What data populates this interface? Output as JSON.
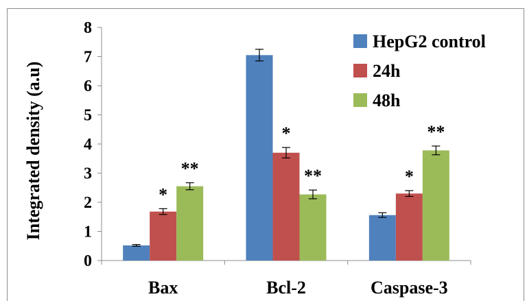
{
  "chart_data": {
    "type": "bar",
    "title": "",
    "xlabel": "",
    "ylabel": "Integrated density (a.u)",
    "ylim": [
      0,
      8
    ],
    "yticks": [
      "0",
      "1",
      "2",
      "3",
      "4",
      "5",
      "6",
      "7",
      "8"
    ],
    "categories": [
      "Bax",
      "Bcl-2",
      "Caspase-3"
    ],
    "series": [
      {
        "name": "HepG2 control",
        "color": "#4f81bd",
        "values": [
          0.52,
          7.05,
          1.56
        ],
        "errors": [
          0.03,
          0.2,
          0.08
        ],
        "labels": [
          "",
          "",
          ""
        ]
      },
      {
        "name": "24h",
        "color": "#c0504d",
        "values": [
          1.68,
          3.7,
          2.3
        ],
        "errors": [
          0.1,
          0.18,
          0.1
        ],
        "labels": [
          "*",
          "*",
          "*"
        ]
      },
      {
        "name": "48h",
        "color": "#9bbb59",
        "values": [
          2.55,
          2.27,
          3.78
        ],
        "errors": [
          0.12,
          0.15,
          0.15
        ],
        "labels": [
          "**",
          "**",
          "**"
        ]
      }
    ],
    "grid": false,
    "legend_position": "top-right"
  }
}
